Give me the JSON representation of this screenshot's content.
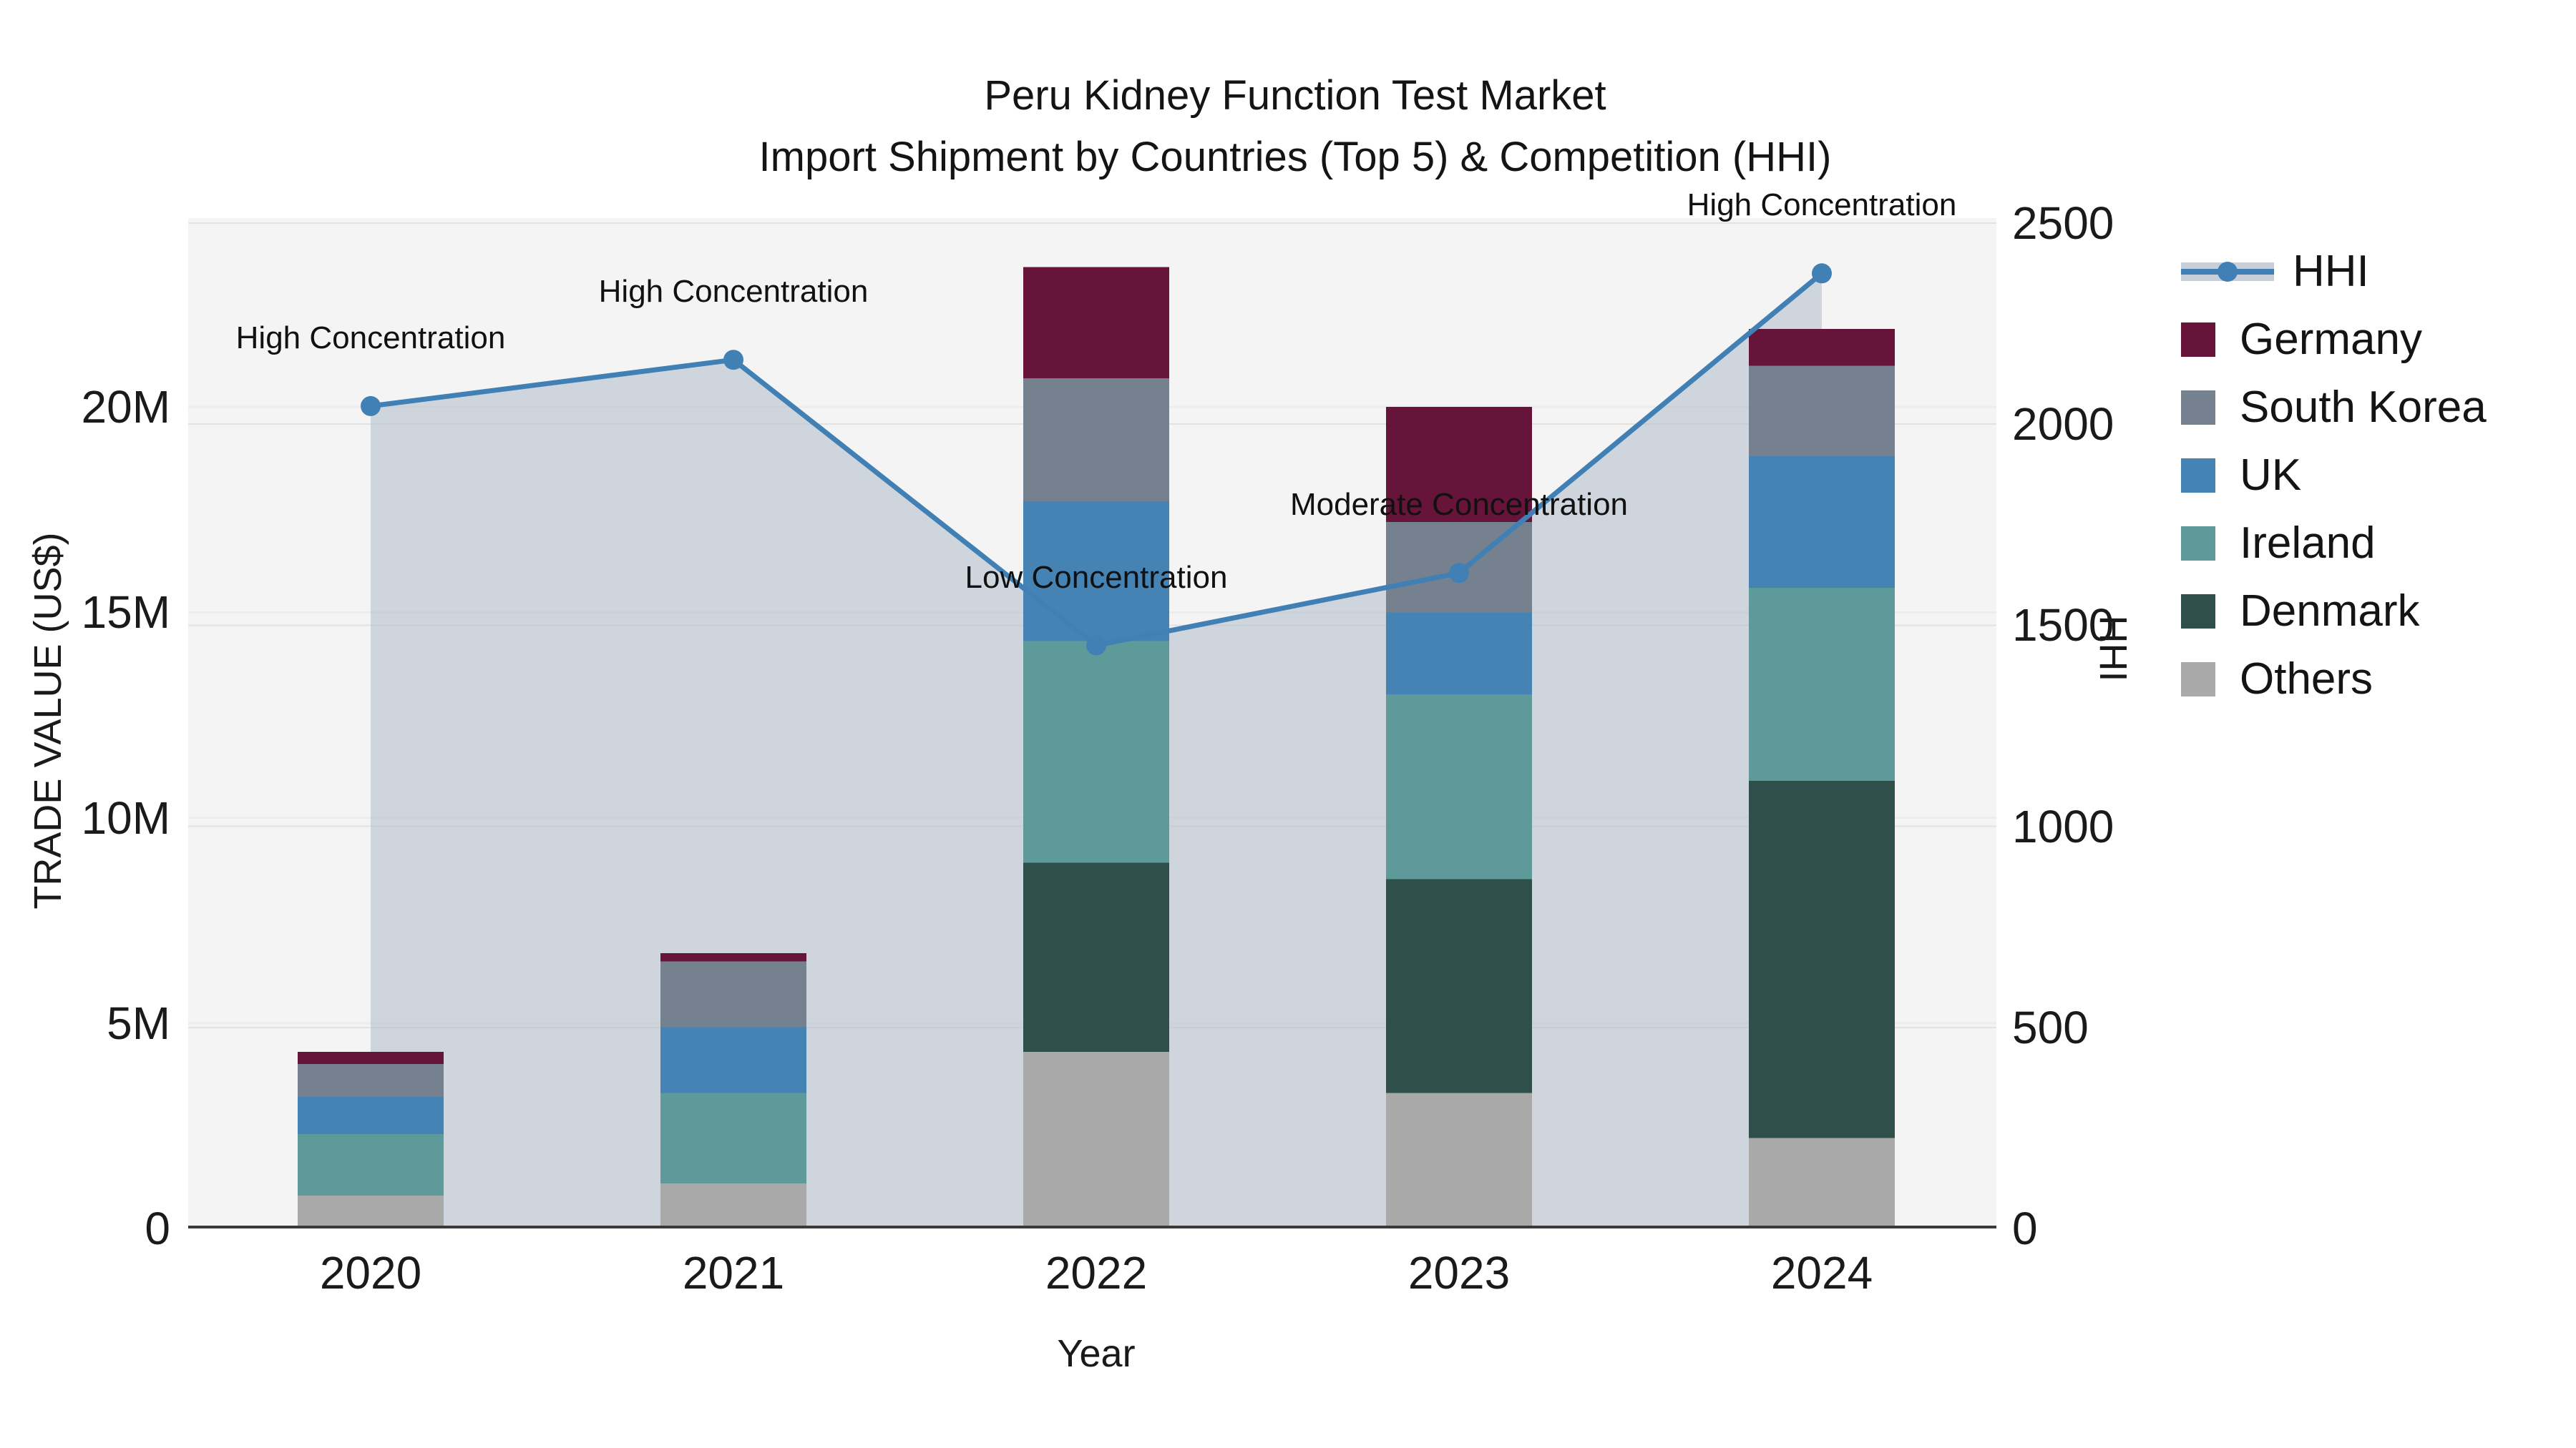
{
  "title": {
    "line1": "Peru Kidney Function Test Market",
    "line2": "Import Shipment by Countries (Top 5) & Competition (HHI)"
  },
  "axes": {
    "y_left": {
      "label": "TRADE VALUE (US$)",
      "ticks": [
        {
          "label": "0",
          "value": 0
        },
        {
          "label": "5M",
          "value": 5
        },
        {
          "label": "10M",
          "value": 10
        },
        {
          "label": "15M",
          "value": 15
        },
        {
          "label": "20M",
          "value": 20
        }
      ]
    },
    "y_right": {
      "label": "HHI",
      "ticks": [
        {
          "label": "0",
          "value": 0
        },
        {
          "label": "500",
          "value": 500
        },
        {
          "label": "1000",
          "value": 1000
        },
        {
          "label": "1500",
          "value": 1500
        },
        {
          "label": "2000",
          "value": 2000
        },
        {
          "label": "2500",
          "value": 2500
        }
      ]
    },
    "x": {
      "label": "Year",
      "categories": [
        "2020",
        "2021",
        "2022",
        "2023",
        "2024"
      ]
    }
  },
  "legend": {
    "items": [
      {
        "label": "HHI",
        "type": "line",
        "color": "#4080B4"
      },
      {
        "label": "Germany",
        "type": "swatch",
        "color": "#67143B"
      },
      {
        "label": "South Korea",
        "type": "swatch",
        "color": "#75818F"
      },
      {
        "label": "UK",
        "type": "swatch",
        "color": "#4683B5"
      },
      {
        "label": "Ireland",
        "type": "swatch",
        "color": "#5F9A9B"
      },
      {
        "label": "Denmark",
        "type": "swatch",
        "color": "#2F4F4B"
      },
      {
        "label": "Others",
        "type": "swatch",
        "color": "#A9A9A9"
      }
    ]
  },
  "chart_data": {
    "type": "bar",
    "subtype": "stacked-bars-with-line",
    "units": "US$ millions (left axis), HHI index (right axis)",
    "categories": [
      "2020",
      "2021",
      "2022",
      "2023",
      "2024"
    ],
    "stack_order_bottom_to_top": [
      "Others",
      "Denmark",
      "Ireland",
      "UK",
      "South Korea",
      "Germany"
    ],
    "series": [
      {
        "name": "Germany",
        "color": "#67143B",
        "values": [
          0.3,
          0.2,
          2.7,
          2.8,
          0.9
        ]
      },
      {
        "name": "South Korea",
        "color": "#75818F",
        "values": [
          0.8,
          1.6,
          3.0,
          2.2,
          2.2
        ]
      },
      {
        "name": "UK",
        "color": "#4683B5",
        "values": [
          0.9,
          1.6,
          3.4,
          2.0,
          3.2
        ]
      },
      {
        "name": "Ireland",
        "color": "#5F9A9B",
        "values": [
          1.5,
          2.2,
          5.4,
          4.5,
          4.7
        ]
      },
      {
        "name": "Denmark",
        "color": "#2F4F4B",
        "values": [
          0.0,
          0.0,
          4.6,
          5.2,
          8.7
        ]
      },
      {
        "name": "Others",
        "color": "#A9A9A9",
        "values": [
          0.8,
          1.1,
          4.3,
          3.3,
          2.2
        ]
      }
    ],
    "bar_totals": [
      4.3,
      6.7,
      23.4,
      20.0,
      21.9
    ],
    "line_series": {
      "name": "HHI",
      "axis": "right",
      "color": "#4080B4",
      "values": [
        2045,
        2160,
        1450,
        1630,
        2375
      ]
    },
    "area_fill": {
      "under_line": "HHI",
      "color": "#AEBBCB",
      "opacity": 0.55
    },
    "annotations": [
      {
        "category": "2020",
        "label": "High Concentration"
      },
      {
        "category": "2021",
        "label": "High Concentration"
      },
      {
        "category": "2022",
        "label": "Low Concentration"
      },
      {
        "category": "2023",
        "label": "Moderate Concentration"
      },
      {
        "category": "2024",
        "label": "High Concentration"
      }
    ],
    "ylim_left": [
      0,
      24.6
    ],
    "ylim_right": [
      0,
      2513
    ],
    "grid": true,
    "legend_position": "right"
  },
  "colors": {
    "background": "#FFFFFF",
    "plot_background": "#F4F4F4",
    "grid_left": "#ECECEC",
    "grid_right": "#E2E2E2",
    "axis_line": "#3A3A3A",
    "text": "#111111"
  }
}
